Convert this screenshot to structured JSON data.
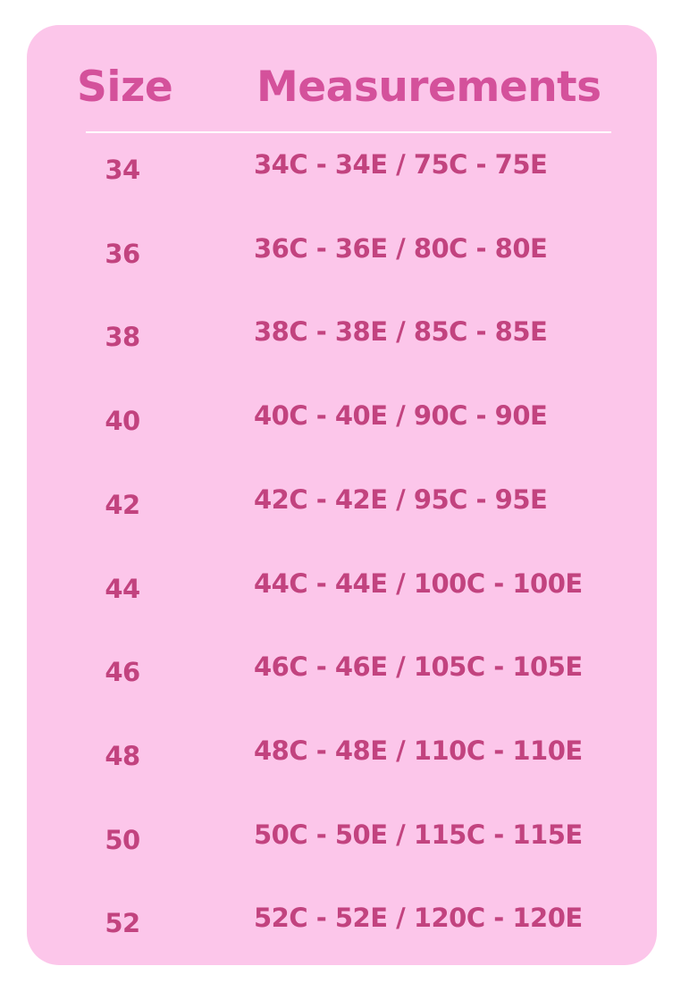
{
  "table": {
    "header": [
      "Size",
      "Measurements"
    ],
    "rows": [
      [
        "34",
        "34C - 34E / 75C - 75E"
      ],
      [
        "36",
        "36C - 36E / 80C - 80E"
      ],
      [
        "38",
        "38C - 38E / 85C - 85E"
      ],
      [
        "40",
        "40C - 40E / 90C - 90E"
      ],
      [
        "42",
        "42C - 42E / 95C - 95E"
      ],
      [
        "44",
        "44C - 44E / 100C - 100E"
      ],
      [
        "46",
        "46C - 46E / 105C - 105E"
      ],
      [
        "48",
        "48C - 48E / 110C - 110E"
      ],
      [
        "50",
        "50C - 50E / 115C - 115E"
      ],
      [
        "52",
        "52C - 52E / 120C - 120E"
      ]
    ]
  }
}
